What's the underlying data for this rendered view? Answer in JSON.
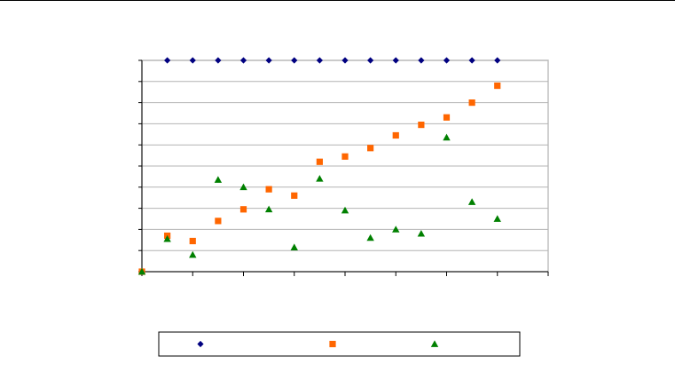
{
  "chart_data": {
    "type": "scatter",
    "title": "",
    "xlabel": "",
    "ylabel": "",
    "xlim": [
      0,
      16
    ],
    "ylim": [
      0,
      10
    ],
    "x_major_step": 2,
    "y_major_step": 1,
    "grid": "horizontal",
    "tick_labels_visible": false,
    "legend_position": "bottom",
    "series": [
      {
        "marker": "diamond",
        "color": "#000080",
        "x": [
          1,
          2,
          3,
          4,
          5,
          6,
          7,
          8,
          9,
          10,
          11,
          12,
          13,
          14
        ],
        "y": [
          10,
          10,
          10,
          10,
          10,
          10,
          10,
          10,
          10,
          10,
          10,
          10,
          10,
          10
        ]
      },
      {
        "marker": "square",
        "color": "#ff6600",
        "x": [
          0,
          1,
          2,
          3,
          4,
          5,
          6,
          7,
          8,
          9,
          10,
          11,
          12,
          13,
          14
        ],
        "y": [
          0,
          1.7,
          1.45,
          2.4,
          2.95,
          3.9,
          3.6,
          5.2,
          5.45,
          5.85,
          6.45,
          6.95,
          7.3,
          8.0,
          8.8
        ]
      },
      {
        "marker": "triangle",
        "color": "#008000",
        "x": [
          0,
          1,
          2,
          3,
          4,
          5,
          6,
          7,
          8,
          9,
          10,
          11,
          12,
          13,
          14
        ],
        "y": [
          0,
          1.55,
          0.8,
          4.35,
          4.0,
          2.95,
          1.15,
          4.4,
          2.9,
          1.6,
          2.0,
          1.8,
          6.35,
          3.3,
          2.5
        ]
      }
    ]
  }
}
